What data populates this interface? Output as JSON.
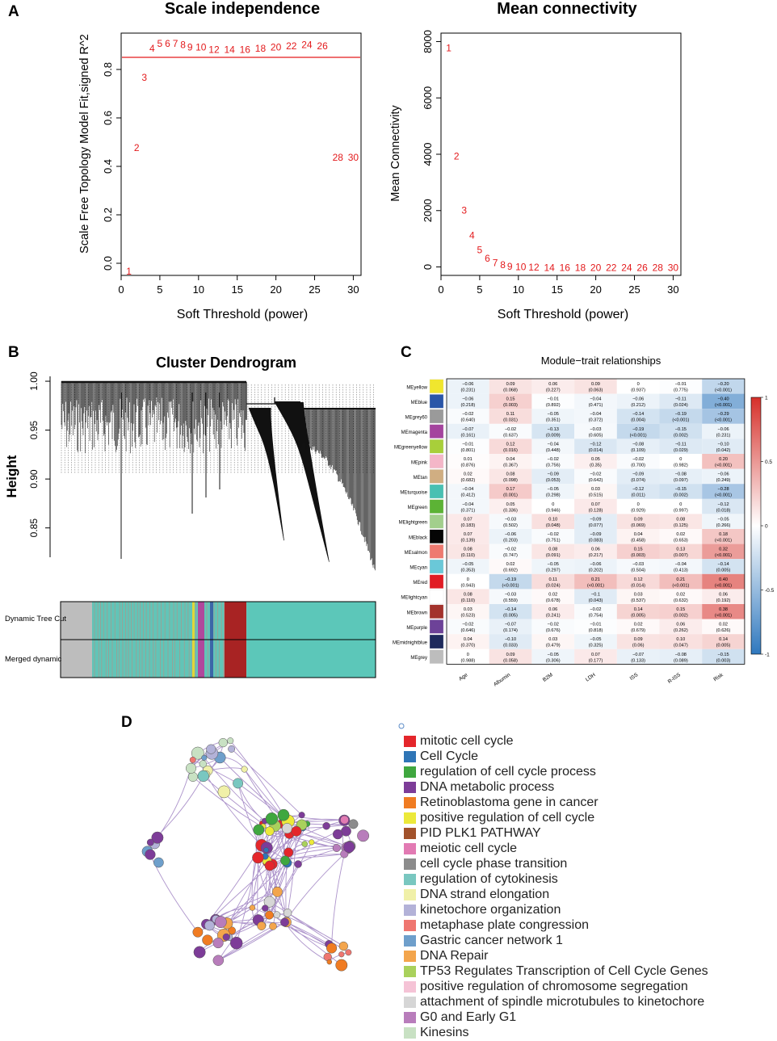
{
  "panels": {
    "a": "A",
    "b": "B",
    "c": "C",
    "d": "D"
  },
  "chart_data": [
    {
      "id": "scale-independence",
      "type": "scatter",
      "title": "Scale independence",
      "xlabel": "Soft Threshold (power)",
      "ylabel": "Scale Free Topology Model Fit,signed R^2",
      "xlim": [
        0,
        31
      ],
      "ylim": [
        -0.05,
        0.95
      ],
      "xticks": [
        "0",
        "5",
        "10",
        "15",
        "20",
        "25",
        "30"
      ],
      "yticks": [
        "0.0",
        "0.2",
        "0.4",
        "0.6",
        "0.8"
      ],
      "hline": 0.85,
      "points": [
        {
          "label": "1",
          "x": 1,
          "y": -0.03
        },
        {
          "label": "2",
          "x": 2,
          "y": 0.48
        },
        {
          "label": "3",
          "x": 3,
          "y": 0.77
        },
        {
          "label": "4",
          "x": 4,
          "y": 0.89
        },
        {
          "label": "5",
          "x": 5,
          "y": 0.91
        },
        {
          "label": "6",
          "x": 6,
          "y": 0.91
        },
        {
          "label": "7",
          "x": 7,
          "y": 0.91
        },
        {
          "label": "8",
          "x": 8,
          "y": 0.905
        },
        {
          "label": "9",
          "x": 9,
          "y": 0.895
        },
        {
          "label": "10",
          "x": 10,
          "y": 0.895
        },
        {
          "label": "12",
          "x": 12,
          "y": 0.885
        },
        {
          "label": "14",
          "x": 14,
          "y": 0.885
        },
        {
          "label": "16",
          "x": 16,
          "y": 0.885
        },
        {
          "label": "18",
          "x": 18,
          "y": 0.89
        },
        {
          "label": "20",
          "x": 20,
          "y": 0.895
        },
        {
          "label": "22",
          "x": 22,
          "y": 0.9
        },
        {
          "label": "24",
          "x": 24,
          "y": 0.905
        },
        {
          "label": "26",
          "x": 26,
          "y": 0.9
        },
        {
          "label": "28",
          "x": 28,
          "y": 0.44
        },
        {
          "label": "30",
          "x": 30,
          "y": 0.44
        }
      ]
    },
    {
      "id": "mean-connectivity",
      "type": "scatter",
      "title": "Mean connectivity",
      "xlabel": "Soft Threshold (power)",
      "ylabel": "Mean Connectivity",
      "xlim": [
        0,
        31
      ],
      "ylim": [
        -300,
        8300
      ],
      "xticks": [
        "0",
        "5",
        "10",
        "15",
        "20",
        "25",
        "30"
      ],
      "yticks": [
        "0",
        "2000",
        "4000",
        "6000",
        "8000"
      ],
      "points": [
        {
          "label": "1",
          "x": 1,
          "y": 7800
        },
        {
          "label": "2",
          "x": 2,
          "y": 3950
        },
        {
          "label": "3",
          "x": 3,
          "y": 2030
        },
        {
          "label": "4",
          "x": 4,
          "y": 1150
        },
        {
          "label": "5",
          "x": 5,
          "y": 630
        },
        {
          "label": "6",
          "x": 6,
          "y": 330
        },
        {
          "label": "7",
          "x": 7,
          "y": 180
        },
        {
          "label": "8",
          "x": 8,
          "y": 100
        },
        {
          "label": "9",
          "x": 9,
          "y": 50
        },
        {
          "label": "10",
          "x": 10,
          "y": 30
        },
        {
          "label": "12",
          "x": 12,
          "y": 15
        },
        {
          "label": "14",
          "x": 14,
          "y": 8
        },
        {
          "label": "16",
          "x": 16,
          "y": 5
        },
        {
          "label": "18",
          "x": 18,
          "y": 3
        },
        {
          "label": "20",
          "x": 20,
          "y": 2
        },
        {
          "label": "22",
          "x": 22,
          "y": 1
        },
        {
          "label": "24",
          "x": 24,
          "y": 1
        },
        {
          "label": "26",
          "x": 26,
          "y": 1
        },
        {
          "label": "28",
          "x": 28,
          "y": 0
        },
        {
          "label": "30",
          "x": 30,
          "y": 0
        }
      ]
    },
    {
      "id": "cluster-dendrogram",
      "type": "dendrogram",
      "title": "Cluster Dendrogram",
      "ylabel": "Height",
      "ylim": [
        0.82,
        1.005
      ],
      "yticks": [
        0.85,
        0.9,
        0.95,
        1.0
      ],
      "ytick_labels": [
        "0.85",
        "0.90",
        "0.95",
        "1.00"
      ],
      "color_rows": [
        "Dynamic Tree Cut",
        "Merged dynamic"
      ],
      "module_blocks": [
        {
          "color": "#bdbdbd",
          "fraction": 0.1
        },
        {
          "color": "#62c4b7",
          "fraction": 0.42
        },
        {
          "color": "#a82323",
          "fraction": 0.07
        },
        {
          "color": "#5cc7b9",
          "fraction": 0.41
        }
      ]
    },
    {
      "id": "module-trait",
      "type": "heatmap",
      "title": "Module−trait relationships",
      "columns": [
        "Age",
        "Albumin",
        "B2M",
        "LDH",
        "ISS",
        "R-ISS",
        "Risk"
      ],
      "rows": [
        {
          "name": "MEyellow",
          "color": "#f0e62e",
          "values": [
            -0.06,
            0.09,
            0.06,
            0.09,
            0,
            -0.01,
            -0.2
          ],
          "cells": [
            "−0.06\n(0.231)",
            "0.09\n(0.068)",
            "0.06\n(0.227)",
            "0.09\n(0.063)",
            "0\n(0.937)",
            "−0.01\n(0.775)",
            "−0.20\n(<0.001)"
          ]
        },
        {
          "name": "MEblue",
          "color": "#2a56a8",
          "values": [
            -0.06,
            0.15,
            -0.01,
            -0.04,
            -0.06,
            -0.11,
            -0.4
          ],
          "cells": [
            "−0.06\n(0.218)",
            "0.15\n(0.003)",
            "−0.01\n(0.892)",
            "−0.04\n(0.471)",
            "−0.06\n(0.212)",
            "−0.11\n(0.024)",
            "−0.40\n(<0.001)"
          ]
        },
        {
          "name": "MEgrey60",
          "color": "#9a9a9a",
          "values": [
            -0.02,
            0.11,
            -0.05,
            -0.04,
            -0.14,
            -0.19,
            -0.29
          ],
          "cells": [
            "−0.02\n(0.640)",
            "0.11\n(0.031)",
            "−0.05\n(0.351)",
            "−0.04\n(0.372)",
            "−0.14\n(0.004)",
            "−0.19\n(<0.001)",
            "−0.29\n(<0.001)"
          ]
        },
        {
          "name": "MEmagenta",
          "color": "#a4449e",
          "values": [
            -0.07,
            -0.02,
            -0.13,
            -0.03,
            -0.19,
            -0.15,
            -0.06
          ],
          "cells": [
            "−0.07\n(0.161)",
            "−0.02\n(0.637)",
            "−0.13\n(0.009)",
            "−0.03\n(0.605)",
            "−0.19\n(<0.001)",
            "−0.15\n(0.002)",
            "−0.06\n(0.231)"
          ]
        },
        {
          "name": "MEgreenyellow",
          "color": "#a8cf3a",
          "values": [
            -0.01,
            0.12,
            -0.04,
            -0.12,
            -0.08,
            -0.11,
            -0.1
          ],
          "cells": [
            "−0.01\n(0.801)",
            "0.12\n(0.016)",
            "−0.04\n(0.448)",
            "−0.12\n(0.014)",
            "−0.08\n(0.109)",
            "−0.11\n(0.029)",
            "−0.10\n(0.042)"
          ]
        },
        {
          "name": "MEpink",
          "color": "#f4b6c8",
          "values": [
            0.01,
            0.04,
            -0.02,
            0.05,
            -0.02,
            0,
            0.2
          ],
          "cells": [
            "0.01\n(0.876)",
            "0.04\n(0.367)",
            "−0.02\n(0.756)",
            "0.05\n(0.35)",
            "−0.02\n(0.700)",
            "0\n(0.982)",
            "0.20\n(<0.001)"
          ]
        },
        {
          "name": "MEtan",
          "color": "#d0ae82",
          "values": [
            0.02,
            0.08,
            -0.09,
            -0.02,
            -0.09,
            -0.08,
            -0.06
          ],
          "cells": [
            "0.02\n(0.682)",
            "0.08\n(0.098)",
            "−0.09\n(0.053)",
            "−0.02\n(0.642)",
            "−0.09\n(0.074)",
            "−0.08\n(0.097)",
            "−0.06\n(0.249)"
          ]
        },
        {
          "name": "MEturquoise",
          "color": "#49c0b2",
          "values": [
            -0.04,
            0.17,
            -0.05,
            0.03,
            -0.12,
            -0.15,
            -0.28
          ],
          "cells": [
            "−0.04\n(0.412)",
            "0.17\n(0.001)",
            "−0.05\n(0.298)",
            "0.03\n(0.515)",
            "−0.12\n(0.011)",
            "−0.15\n(0.002)",
            "−0.28\n(<0.001)"
          ]
        },
        {
          "name": "MEgreen",
          "color": "#5cb335",
          "values": [
            -0.04,
            0.05,
            0,
            0.07,
            0,
            0,
            -0.12
          ],
          "cells": [
            "−0.04\n(0.371)",
            "0.05\n(0.336)",
            "0\n(0.946)",
            "0.07\n(0.128)",
            "0\n(0.929)",
            "0\n(0.997)",
            "−0.12\n(0.018)"
          ]
        },
        {
          "name": "MElightgreen",
          "color": "#a2cf8c",
          "values": [
            0.07,
            -0.03,
            0.1,
            -0.09,
            0.09,
            0.08,
            -0.05
          ],
          "cells": [
            "0.07\n(0.183)",
            "−0.03\n(0.502)",
            "0.10\n(0.048)",
            "−0.09\n(0.077)",
            "0.09\n(0.069)",
            "0.08\n(0.125)",
            "−0.05\n(0.266)"
          ]
        },
        {
          "name": "MEblack",
          "color": "#050505",
          "values": [
            0.07,
            -0.06,
            -0.02,
            -0.09,
            0.04,
            0.02,
            0.18
          ],
          "cells": [
            "0.07\n(0.139)",
            "−0.06\n(0.203)",
            "−0.02\n(0.751)",
            "−0.09\n(0.083)",
            "0.04\n(0.458)",
            "0.02\n(0.653)",
            "0.18\n(<0.001)"
          ]
        },
        {
          "name": "MEsalmon",
          "color": "#ee7a70",
          "values": [
            0.08,
            -0.02,
            0.08,
            0.06,
            0.15,
            0.13,
            0.32
          ],
          "cells": [
            "0.08\n(0.110)",
            "−0.02\n(0.747)",
            "0.08\n(0.091)",
            "0.06\n(0.217)",
            "0.15\n(0.003)",
            "0.13\n(0.007)",
            "0.32\n(<0.001)"
          ]
        },
        {
          "name": "MEcyan",
          "color": "#6ac8d8",
          "values": [
            -0.05,
            0.02,
            -0.05,
            -0.06,
            -0.03,
            -0.04,
            -0.14
          ],
          "cells": [
            "−0.05\n(0.353)",
            "0.02\n(0.692)",
            "−0.05\n(0.297)",
            "−0.06\n(0.202)",
            "−0.03\n(0.504)",
            "−0.04\n(0.413)",
            "−0.14\n(0.005)"
          ]
        },
        {
          "name": "MEred",
          "color": "#e11c24",
          "values": [
            0,
            -0.19,
            0.11,
            0.21,
            0.12,
            0.21,
            0.4
          ],
          "cells": [
            "0\n(0.943)",
            "−0.19\n(<0.001)",
            "0.11\n(0.024)",
            "0.21\n(<0.001)",
            "0.12\n(0.014)",
            "0.21\n(<0.001)",
            "0.40\n(<0.001)"
          ]
        },
        {
          "name": "MElightcyan",
          "color": "#ffffff",
          "values": [
            0.08,
            -0.03,
            0.02,
            -0.1,
            0.03,
            0.02,
            0.06
          ],
          "cells": [
            "0.08\n(0.110)",
            "−0.03\n(0.559)",
            "0.02\n(0.678)",
            "−0.1\n(0.043)",
            "0.03\n(0.537)",
            "0.02\n(0.632)",
            "0.06\n(0.192)"
          ]
        },
        {
          "name": "MEbrown",
          "color": "#a3322c",
          "values": [
            0.03,
            -0.14,
            0.06,
            -0.02,
            0.14,
            0.15,
            0.38
          ],
          "cells": [
            "0.03\n(0.523)",
            "−0.14\n(0.005)",
            "0.06\n(0.241)",
            "−0.02\n(0.754)",
            "0.14\n(0.005)",
            "0.15\n(0.002)",
            "0.38\n(<0.001)"
          ]
        },
        {
          "name": "MEpurple",
          "color": "#6d4298",
          "values": [
            -0.02,
            -0.07,
            -0.02,
            -0.01,
            0.02,
            0.06,
            0.02
          ],
          "cells": [
            "−0.02\n(0.646)",
            "−0.07\n(0.174)",
            "−0.02\n(0.676)",
            "−0.01\n(0.818)",
            "0.02\n(0.679)",
            "0.06\n(0.262)",
            "0.02\n(0.626)"
          ]
        },
        {
          "name": "MEmidnightblue",
          "color": "#1e2a5c",
          "values": [
            0.04,
            -0.1,
            0.03,
            -0.05,
            0.09,
            0.1,
            0.14
          ],
          "cells": [
            "0.04\n(0.370)",
            "−0.10\n(0.033)",
            "0.03\n(0.479)",
            "−0.05\n(0.325)",
            "0.09\n(0.06)",
            "0.10\n(0.047)",
            "0.14\n(0.005)"
          ]
        },
        {
          "name": "MEgrey",
          "color": "#bdbdbd",
          "values": [
            0,
            0.09,
            -0.05,
            0.07,
            -0.07,
            -0.08,
            -0.15
          ],
          "cells": [
            "0\n(0.988)",
            "0.09\n(0.058)",
            "−0.05\n(0.306)",
            "0.07\n(0.177)",
            "−0.07\n(0.133)",
            "−0.08\n(0.089)",
            "−0.15\n(0.003)"
          ]
        }
      ],
      "colorbar": {
        "ticks": [
          "1",
          "0.5",
          "0",
          "-0.5",
          "-1"
        ],
        "high": "#d6302a",
        "mid": "#ffffff",
        "low": "#2f78be"
      }
    },
    {
      "id": "enrichment-network",
      "type": "network",
      "legend": [
        {
          "label": "mitotic cell cycle",
          "color": "#e4262b"
        },
        {
          "label": "Cell Cycle",
          "color": "#2f75b6"
        },
        {
          "label": "regulation of cell cycle process",
          "color": "#3fa73f"
        },
        {
          "label": "DNA metabolic process",
          "color": "#7d3c98"
        },
        {
          "label": "Retinoblastoma gene in cancer",
          "color": "#f07c22"
        },
        {
          "label": "positive regulation of cell cycle",
          "color": "#ece93a"
        },
        {
          "label": "PID PLK1 PATHWAY",
          "color": "#a2522b"
        },
        {
          "label": "meiotic cell cycle",
          "color": "#e27ab3"
        },
        {
          "label": "cell cycle phase transition",
          "color": "#8c8c8c"
        },
        {
          "label": "regulation of cytokinesis",
          "color": "#79c7c0"
        },
        {
          "label": "DNA strand elongation",
          "color": "#f0f0a8"
        },
        {
          "label": "kinetochore organization",
          "color": "#b3b2d8"
        },
        {
          "label": "metaphase plate congression",
          "color": "#ef7670"
        },
        {
          "label": "Gastric cancer network 1",
          "color": "#6e9fcb"
        },
        {
          "label": "DNA Repair",
          "color": "#f3a54c"
        },
        {
          "label": "TP53 Regulates Transcription of Cell Cycle Genes",
          "color": "#a9d15c"
        },
        {
          "label": "positive regulation of chromosome segregation",
          "color": "#f5c3d6"
        },
        {
          "label": "attachment of spindle microtubules to kinetochore",
          "color": "#d6d6d6"
        },
        {
          "label": "G0 and Early G1",
          "color": "#b87dbb"
        },
        {
          "label": "Kinesins",
          "color": "#c8e1c3"
        }
      ]
    }
  ]
}
